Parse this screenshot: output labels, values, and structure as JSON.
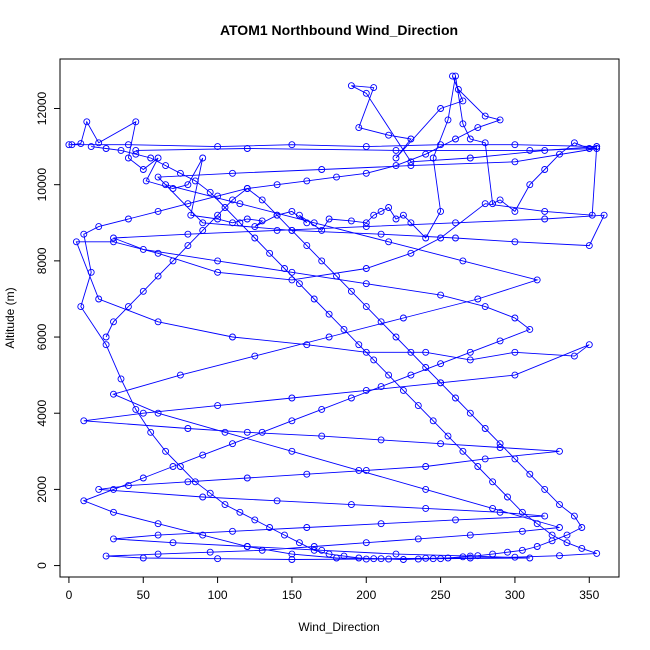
{
  "chart_data": {
    "type": "line",
    "title": "ATOM1 Northbound Wind_Direction",
    "xlabel": "Wind_Direction",
    "ylabel": "Altitude (m)",
    "xlim": [
      -6,
      370
    ],
    "ylim": [
      -300,
      13300
    ],
    "x_ticks": [
      0,
      50,
      100,
      150,
      200,
      250,
      300,
      350
    ],
    "y_ticks": [
      0,
      2000,
      4000,
      6000,
      8000,
      10000,
      12000
    ],
    "grid": false,
    "legend": "none",
    "series": [
      {
        "color": "#0000ff",
        "x": [
          2,
          8,
          12,
          20,
          45,
          40,
          50,
          60,
          52,
          70,
          80,
          90,
          82,
          100,
          110,
          120,
          130,
          125,
          140,
          150,
          160,
          155,
          170,
          175,
          190,
          200,
          205,
          210,
          215,
          220,
          225,
          230,
          240,
          250,
          245,
          255,
          260,
          265,
          270,
          280,
          285,
          290,
          300,
          310,
          320,
          330,
          340,
          350,
          355,
          352,
          320,
          280,
          250,
          230,
          200,
          150,
          100,
          60,
          30,
          5,
          20,
          60,
          110,
          160,
          200,
          240,
          270,
          300,
          340,
          350,
          300,
          250,
          200,
          150,
          100,
          50,
          10,
          80,
          120,
          170,
          210,
          250,
          290,
          330,
          280,
          240,
          200,
          160,
          120,
          80,
          40,
          20,
          90,
          140,
          190,
          240,
          290,
          320,
          260,
          210,
          160,
          110,
          60,
          30,
          70,
          120,
          170,
          220,
          270,
          310,
          250,
          200,
          150,
          100,
          50,
          25,
          60,
          95,
          130,
          165,
          200,
          235,
          270,
          305,
          330,
          285,
          240,
          195,
          150,
          105,
          60,
          30,
          75,
          125,
          175,
          225,
          275,
          315,
          265,
          215,
          165,
          115,
          65
        ],
        "y": [
          11050,
          11080,
          11650,
          11100,
          11650,
          10700,
          10400,
          10700,
          10100,
          9900,
          10000,
          10700,
          9200,
          9100,
          9000,
          9100,
          9050,
          8900,
          9200,
          9300,
          9000,
          9200,
          8800,
          9100,
          9050,
          9000,
          9200,
          9300,
          9400,
          9100,
          9200,
          9000,
          8600,
          9300,
          10700,
          11700,
          12850,
          11600,
          11200,
          11100,
          9500,
          9600,
          9300,
          10000,
          10400,
          10800,
          11100,
          10950,
          11000,
          9200,
          9300,
          9500,
          8600,
          8200,
          7800,
          7500,
          7700,
          8200,
          8500,
          8500,
          7000,
          6400,
          6000,
          5800,
          5600,
          5600,
          5400,
          5600,
          5500,
          5800,
          5000,
          4800,
          4600,
          4400,
          4200,
          4000,
          3800,
          3600,
          3500,
          3400,
          3300,
          3200,
          3100,
          3000,
          2800,
          2600,
          2500,
          2400,
          2300,
          2200,
          2100,
          2000,
          1800,
          1700,
          1600,
          1500,
          1400,
          1300,
          1200,
          1100,
          1000,
          900,
          800,
          700,
          600,
          500,
          400,
          300,
          250,
          200,
          180,
          170,
          160,
          180,
          200,
          250,
          300,
          350,
          400,
          500,
          600,
          700,
          800,
          900,
          1000,
          1500,
          2000,
          2500,
          3000,
          3500,
          4000,
          4500,
          5000,
          5500,
          6000,
          6500,
          7000,
          7500,
          8000,
          8500,
          9000,
          9500,
          10000
        ]
      },
      {
        "color": "#0000ff",
        "x": [
          0,
          40,
          100,
          150,
          200,
          250,
          300,
          355,
          320,
          270,
          230,
          200,
          190,
          205,
          195,
          215,
          230,
          220,
          250,
          265,
          258,
          262,
          280,
          290,
          275,
          260,
          240,
          220,
          200,
          180,
          160,
          140,
          120,
          100,
          80,
          60,
          40,
          20,
          10,
          15,
          8,
          25,
          35,
          45,
          55,
          65,
          75,
          85,
          95,
          105,
          115,
          125,
          135,
          145,
          155,
          165,
          175,
          185,
          195,
          205,
          215,
          225,
          235,
          245,
          255,
          265,
          275,
          285,
          295,
          305,
          315,
          325,
          335,
          345,
          340,
          330,
          320,
          310,
          300,
          290,
          280,
          270,
          260,
          250,
          240,
          230,
          220,
          210,
          200,
          190,
          180,
          170,
          160,
          150,
          140,
          130,
          120,
          110,
          100,
          90,
          80,
          70,
          60,
          50,
          40,
          30,
          25
        ],
        "y": [
          11050,
          11050,
          11000,
          11050,
          11000,
          11050,
          11050,
          11000,
          10900,
          10700,
          10600,
          12400,
          12600,
          12550,
          11500,
          11300,
          11200,
          10700,
          12000,
          12200,
          12850,
          12500,
          11800,
          11700,
          11500,
          11200,
          10800,
          10500,
          10300,
          10200,
          10100,
          10000,
          9900,
          9700,
          9500,
          9300,
          9100,
          8900,
          8700,
          7700,
          6800,
          5800,
          4900,
          4100,
          3500,
          3000,
          2600,
          2200,
          1900,
          1600,
          1400,
          1200,
          1000,
          800,
          600,
          400,
          300,
          250,
          200,
          180,
          170,
          160,
          170,
          180,
          200,
          230,
          260,
          300,
          350,
          400,
          500,
          650,
          800,
          1000,
          1300,
          1600,
          2000,
          2400,
          2800,
          3200,
          3600,
          4000,
          4400,
          4800,
          5200,
          5600,
          6000,
          6400,
          6800,
          7200,
          7600,
          8000,
          8400,
          8800,
          9200,
          9600,
          9900,
          9600,
          9200,
          8800,
          8400,
          8000,
          7600,
          7200,
          6800,
          6400,
          6000
        ]
      },
      {
        "color": "#0000ff",
        "x": [
          45,
          120,
          220,
          310,
          355,
          300,
          230,
          170,
          110,
          60,
          90,
          150,
          210,
          260,
          300,
          350,
          360,
          320,
          260,
          200,
          140,
          80,
          30,
          50,
          100,
          150,
          200,
          250,
          280,
          300,
          310,
          290,
          270,
          250,
          230,
          210,
          190,
          170,
          150,
          130,
          110,
          90,
          70,
          50,
          30,
          10,
          30,
          60,
          90,
          120,
          150,
          180,
          210,
          240,
          270,
          300,
          330,
          355,
          345,
          335,
          325,
          315,
          305,
          295,
          285,
          275,
          265,
          255,
          245,
          235,
          225,
          215,
          205,
          195,
          185,
          175,
          165,
          155,
          145,
          135,
          125,
          115,
          105,
          95,
          85,
          75,
          65,
          55,
          45,
          35,
          25,
          15
        ],
        "y": [
          10900,
          10950,
          10900,
          10900,
          10950,
          10600,
          10500,
          10400,
          10300,
          10200,
          9000,
          8800,
          8700,
          8600,
          8500,
          8400,
          9200,
          9100,
          9000,
          8900,
          8800,
          8700,
          8600,
          8300,
          8000,
          7700,
          7400,
          7100,
          6800,
          6500,
          6200,
          5900,
          5600,
          5300,
          5000,
          4700,
          4400,
          4100,
          3800,
          3500,
          3200,
          2900,
          2600,
          2300,
          2000,
          1700,
          1400,
          1100,
          800,
          500,
          300,
          200,
          180,
          190,
          200,
          220,
          260,
          320,
          450,
          600,
          800,
          1100,
          1400,
          1800,
          2200,
          2600,
          3000,
          3400,
          3800,
          4200,
          4600,
          5000,
          5400,
          5800,
          6200,
          6600,
          7000,
          7400,
          7800,
          8200,
          8600,
          9000,
          9400,
          9800,
          10100,
          10300,
          10500,
          10700,
          10800,
          10900,
          10950,
          11000
        ]
      }
    ]
  }
}
